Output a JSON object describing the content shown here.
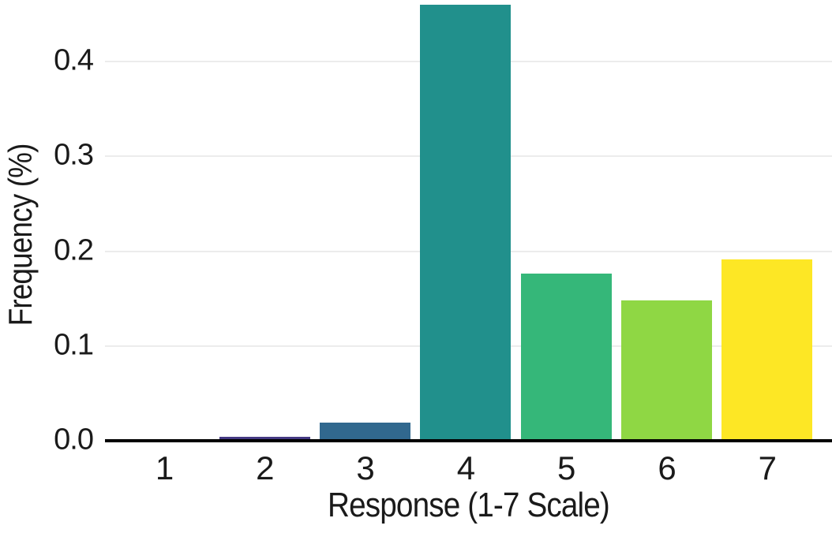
{
  "chart_data": {
    "type": "bar",
    "title": "",
    "xlabel": "Response (1-7 Scale)",
    "ylabel": "Frequency (%)",
    "categories": [
      "1",
      "2",
      "3",
      "4",
      "5",
      "6",
      "7"
    ],
    "values": [
      0.002,
      0.004,
      0.019,
      0.46,
      0.176,
      0.148,
      0.191
    ],
    "bar_colors": [
      "#440154",
      "#443983",
      "#31688E",
      "#21908C",
      "#35B779",
      "#8FD744",
      "#FDE725"
    ],
    "ylim": [
      0,
      0.465
    ],
    "yticks": [
      0.0,
      0.1,
      0.2,
      0.3,
      0.4
    ],
    "ytick_labels": [
      "0.0",
      "0.1",
      "0.2",
      "0.3",
      "0.4"
    ],
    "grid": "horizontal-only",
    "legend": "none",
    "gridline_color": "#ececec",
    "axis_line_color": "#000000",
    "background_color": "#ffffff",
    "text_color": "#1a1a1a"
  }
}
